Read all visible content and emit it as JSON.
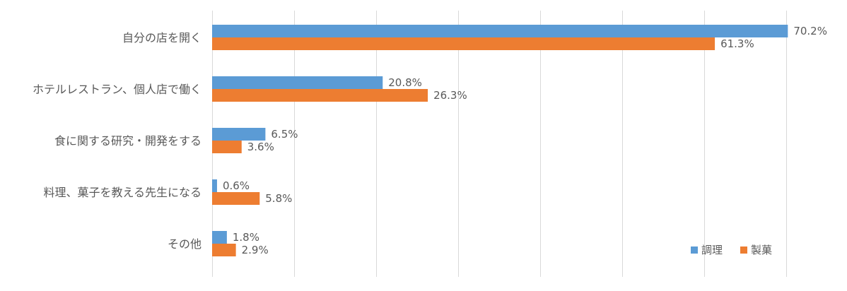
{
  "chart_data": {
    "type": "bar",
    "orientation": "horizontal",
    "categories": [
      "自分の店を開く",
      "ホテルレストラン、個人店で働く",
      "食に関する研究・開発をする",
      "料理、菓子を教える先生になる",
      "その他"
    ],
    "series": [
      {
        "name": "調理",
        "color": "#5b9bd5",
        "values": [
          70.2,
          20.8,
          6.5,
          0.6,
          1.8
        ],
        "labels": [
          "70.2%",
          "20.8%",
          "6.5%",
          "0.6%",
          "1.8%"
        ]
      },
      {
        "name": "製菓",
        "color": "#ed7d31",
        "values": [
          61.3,
          26.3,
          3.6,
          5.8,
          2.9
        ],
        "labels": [
          "61.3%",
          "26.3%",
          "3.6%",
          "5.8%",
          "2.9%"
        ]
      }
    ],
    "xlim": [
      0,
      70
    ],
    "x_gridlines": [
      0,
      10,
      20,
      30,
      40,
      50,
      60,
      70
    ],
    "grid": true,
    "legend_position": "bottom-right"
  }
}
